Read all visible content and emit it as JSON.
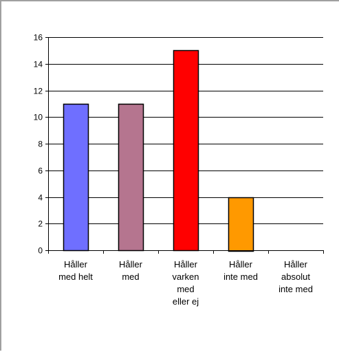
{
  "chart_data": {
    "type": "bar",
    "categories": [
      [
        "Håller",
        "med helt"
      ],
      [
        "Håller",
        "med"
      ],
      [
        "Håller",
        "varken",
        "med",
        "eller ej"
      ],
      [
        "Håller",
        "inte med"
      ],
      [
        "Håller",
        "absolut",
        "inte med"
      ]
    ],
    "values": [
      11,
      11,
      15,
      4,
      0
    ],
    "colors": [
      "#6f6fff",
      "#b5758f",
      "#ff0000",
      "#ff9900",
      "#cccccc"
    ],
    "title": "",
    "xlabel": "",
    "ylabel": "",
    "ylim": [
      0,
      16
    ],
    "yticks": [
      0,
      2,
      4,
      6,
      8,
      10,
      12,
      14,
      16
    ],
    "grid": true,
    "legend": "none"
  }
}
